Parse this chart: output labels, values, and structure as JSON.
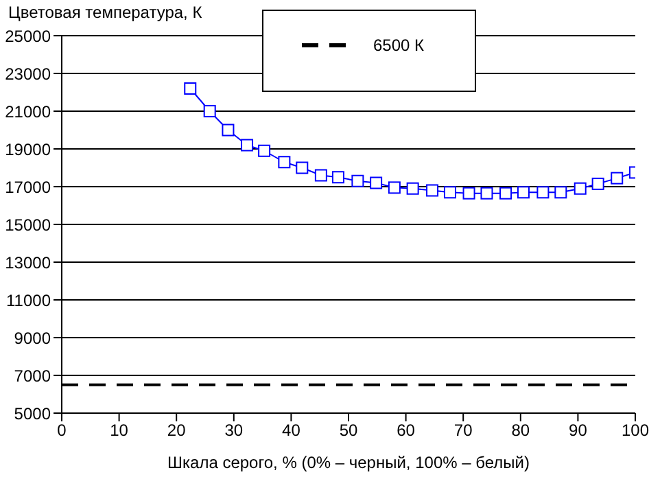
{
  "chart_data": {
    "type": "line",
    "ylabel": "Цветовая температура, К",
    "xlabel": "Шкала серого, % (0% – черный, 100% – белый)",
    "x": [
      22.4,
      25.8,
      29,
      32.3,
      35.3,
      38.8,
      41.9,
      45.2,
      48.2,
      51.6,
      54.8,
      58,
      61.2,
      64.6,
      67.7,
      71,
      74.1,
      77.4,
      80.5,
      83.9,
      87,
      90.4,
      93.5,
      96.8,
      100
    ],
    "series": [
      {
        "color": "#0000ff",
        "values": [
          22200,
          21000,
          20000,
          19200,
          18900,
          18300,
          18000,
          17600,
          17500,
          17300,
          17200,
          16950,
          16900,
          16800,
          16700,
          16650,
          16650,
          16650,
          16700,
          16700,
          16700,
          16900,
          17150,
          17450,
          17750
        ]
      }
    ],
    "xlim": [
      0,
      100
    ],
    "xticks": [
      0,
      10,
      20,
      30,
      40,
      50,
      60,
      70,
      80,
      90,
      100
    ],
    "ylim": [
      5000,
      25000
    ],
    "yticks": [
      5000,
      7000,
      9000,
      11000,
      13000,
      15000,
      17000,
      19000,
      21000,
      23000,
      25000
    ],
    "grid": "y",
    "marker": "square",
    "line_style": "solid",
    "legend": "top right",
    "ref_lines": [
      {
        "axis": "y",
        "value": 6500,
        "label": "6500 К",
        "color": "#000000",
        "line_style": "dashed"
      }
    ]
  }
}
